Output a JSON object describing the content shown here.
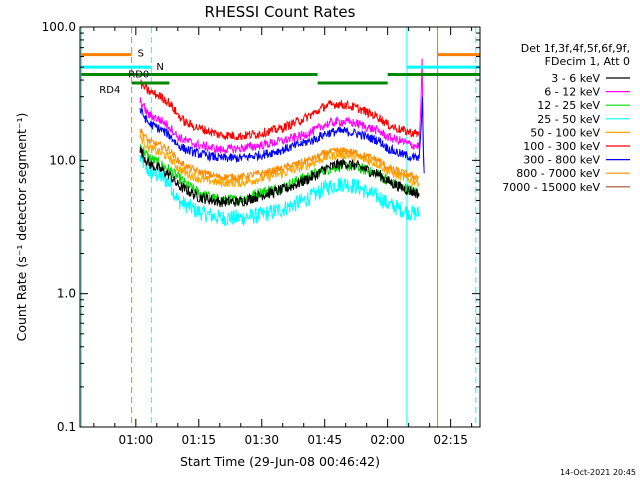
{
  "chart_data": {
    "type": "line",
    "title": "RHESSI Count Rates",
    "xlabel": "Start Time (29-Jun-08 00:46:42)",
    "ylabel": "Count Rate (s⁻¹ detector segment⁻¹)",
    "ylog": true,
    "ylim": [
      0.1,
      100.0
    ],
    "xlim_minutes": [
      46.7,
      142.0
    ],
    "x_ticks": [
      {
        "label": "01:00",
        "t": 60
      },
      {
        "label": "01:15",
        "t": 75
      },
      {
        "label": "01:30",
        "t": 90
      },
      {
        "label": "01:45",
        "t": 105
      },
      {
        "label": "02:00",
        "t": 120
      },
      {
        "label": "02:15",
        "t": 135
      }
    ],
    "y_ticks": [
      {
        "label": "0.1",
        "v": 0.1
      },
      {
        "label": "1.0",
        "v": 1.0
      },
      {
        "label": "10.0",
        "v": 10.0
      },
      {
        "label": "100.0",
        "v": 100.0
      }
    ],
    "legend_header": [
      "Det 1f,3f,4f,5f,6f,9f,",
      "FDecim 1, Att 0"
    ],
    "legend_placement": "right",
    "x_samples": [
      61,
      63,
      66,
      68,
      70,
      72,
      75,
      80,
      85,
      90,
      95,
      100,
      103,
      105,
      108,
      110,
      113,
      115,
      118,
      120,
      123,
      126,
      127.5
    ],
    "series": [
      {
        "name": "3 - 6 keV",
        "color": "#000000",
        "noise": 0.06,
        "values": [
          12,
          9.5,
          8.5,
          7.8,
          6.5,
          6,
          5.3,
          4.9,
          4.9,
          5.5,
          6,
          7,
          7.8,
          8.6,
          9.3,
          9.5,
          9,
          8.5,
          7.8,
          7,
          6.3,
          5.8,
          5.6
        ]
      },
      {
        "name": "6 - 12 keV",
        "color": "#ff00ff",
        "noise": 0.05,
        "values": [
          28,
          22,
          20,
          18,
          15,
          14,
          13,
          12,
          12.3,
          13,
          14,
          15.5,
          17,
          18.5,
          19.5,
          19.5,
          18.8,
          17.8,
          16.5,
          15,
          14,
          13,
          12.8
        ]
      },
      {
        "name": "12 - 25 keV",
        "color": "#00dd00",
        "noise": 0.06,
        "values": [
          13,
          10.5,
          9.3,
          8.5,
          7.5,
          6.6,
          5.7,
          5,
          5.1,
          5.8,
          6.3,
          7.4,
          8,
          8.5,
          9,
          9.1,
          8.8,
          8.4,
          7.8,
          7,
          6.4,
          5.9,
          5.8
        ]
      },
      {
        "name": "25 - 50 keV",
        "color": "#00ffff",
        "noise": 0.09,
        "values": [
          10.5,
          8.3,
          7.5,
          6.8,
          5,
          4.6,
          4.1,
          3.7,
          3.7,
          3.9,
          4.3,
          5,
          5.6,
          6.2,
          6.6,
          6.7,
          6.3,
          5.8,
          5.3,
          4.7,
          4.3,
          4,
          4
        ]
      },
      {
        "name": "50 - 100 keV",
        "color": "#ffa500",
        "noise": 0.05,
        "values": [
          15,
          12.5,
          11.3,
          10.5,
          8.8,
          8,
          7.3,
          6.8,
          6.8,
          7.3,
          8,
          9,
          9.8,
          10.5,
          11,
          11,
          10.5,
          10,
          9.3,
          8.3,
          7.6,
          7,
          6.9
        ]
      },
      {
        "name": "100 - 300 keV",
        "color": "#ff0000",
        "noise": 0.05,
        "values": [
          38,
          33,
          30,
          27,
          22,
          19,
          17.5,
          15.5,
          15.2,
          16,
          17.5,
          20.5,
          23,
          25.5,
          26.5,
          26,
          24.5,
          23,
          21,
          18.5,
          17,
          16,
          15.8
        ]
      },
      {
        "name": "300 - 800 keV",
        "color": "#0000ff",
        "noise": 0.05,
        "values": [
          24,
          19,
          17,
          15.5,
          13,
          12,
          11.2,
          10.4,
          10.4,
          11,
          12,
          13.5,
          14.5,
          15.8,
          16.5,
          16.5,
          15.8,
          15,
          14,
          12.3,
          11.2,
          10.5,
          10.3
        ]
      },
      {
        "name": "800 - 7000 keV",
        "color": "#ff8c00",
        "noise": 0.04,
        "values": [
          17,
          14,
          12.8,
          12,
          10,
          9,
          8.2,
          7.5,
          7.5,
          8,
          8.7,
          9.8,
          10.5,
          11.3,
          11.8,
          11.8,
          11.3,
          10.7,
          10,
          8.8,
          8.2,
          7.6,
          7.5
        ]
      },
      {
        "name": "7000 - 15000 keV",
        "color": "#a0522d",
        "noise": 0.0,
        "values": []
      }
    ],
    "vertical_markers": [
      {
        "t": 47.0,
        "color": "#00ffff",
        "style": "solid"
      },
      {
        "t": 59.0,
        "color": "#ff7f00",
        "style": "dashed"
      },
      {
        "t": 63.7,
        "color": "#00ffff",
        "style": "dashed"
      },
      {
        "t": 124.6,
        "color": "#00ffff",
        "style": "solid"
      },
      {
        "t": 131.9,
        "color": "#cc8400",
        "style": "solid"
      },
      {
        "t": 141.0,
        "color": "#00ffff",
        "style": "dashed"
      }
    ],
    "state_bars": [
      {
        "label": "S",
        "color": "#ff7f00",
        "y": 62.0,
        "segments": [
          [
            47.0,
            59.0
          ],
          [
            131.9,
            142.0
          ]
        ]
      },
      {
        "label": "N",
        "color": "#00ffff",
        "y": 50.0,
        "segments": [
          [
            47.0,
            63.7
          ],
          [
            124.6,
            142.0
          ]
        ]
      },
      {
        "label": "RD0",
        "color": "#008800",
        "y": 44.0,
        "segments": [
          [
            47.0,
            103.3
          ],
          [
            120.0,
            142.0
          ]
        ]
      },
      {
        "label": "RD4",
        "color": "#008800",
        "y": 38.0,
        "segments": [
          [
            59.0,
            68.0
          ],
          [
            103.3,
            120.0
          ]
        ]
      }
    ],
    "footer_date": "14-Oct-2021 20:45"
  }
}
